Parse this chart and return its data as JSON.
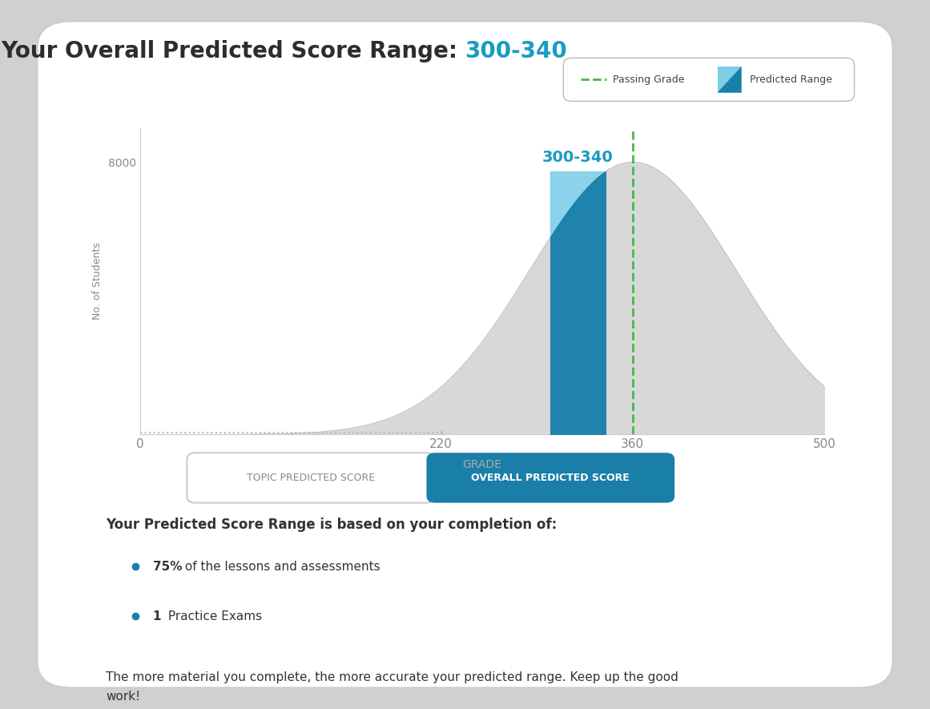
{
  "title_black": "Your Overall Predicted Score Range: ",
  "title_blue": "300-340",
  "title_fontsize": 20,
  "title_color_black": "#2d2d2d",
  "title_color_blue": "#1a9bc2",
  "score_range_label": "300-340",
  "score_range_color": "#1a9bc2",
  "passing_grade": 360,
  "passing_grade_color": "#44b944",
  "passing_grade_label": "Passing Grade",
  "predicted_range_label": "Predicted Range",
  "predicted_range_low": 300,
  "predicted_range_high": 340,
  "bar_light_color": "#7ecee8",
  "bar_dark_color": "#1a7fa8",
  "bell_color": "#d8d8d8",
  "bell_mean": 360,
  "bell_std": 75,
  "x_min": 0,
  "x_max": 500,
  "x_ticks": [
    0,
    220,
    360,
    500
  ],
  "x_tick_labels": [
    "0",
    "220",
    "360",
    "500"
  ],
  "x_tick_colors": [
    "#666666",
    "#666666",
    "#44b944",
    "#666666"
  ],
  "y_tick_8000": "8000",
  "ylabel": "No. of Students",
  "xlabel": "GRADE",
  "ylabel_fontsize": 9,
  "xlabel_fontsize": 10,
  "bg_color": "#ffffff",
  "axis_color": "#cccccc",
  "tab1_text": "TOPIC PREDICTED SCORE",
  "tab2_text": "OVERALL PREDICTED SCORE",
  "tab1_bg": "#ffffff",
  "tab1_border": "#cccccc",
  "tab1_text_color": "#888888",
  "tab2_bg": "#1a7fa8",
  "tab2_text_color": "#ffffff",
  "info_title": "Your Predicted Score Range is based on your completion of:",
  "bullet1_bold": "75%",
  "bullet1_rest": " of the lessons and assessments",
  "bullet2_bold": "1",
  "bullet2_rest": " Practice Exams",
  "footer_text": "The more material you complete, the more accurate your predicted range. Keep up the good\nwork!",
  "bullet_color": "#1a7fa8",
  "text_color": "#333333",
  "info_fontsize": 12,
  "footer_fontsize": 11
}
